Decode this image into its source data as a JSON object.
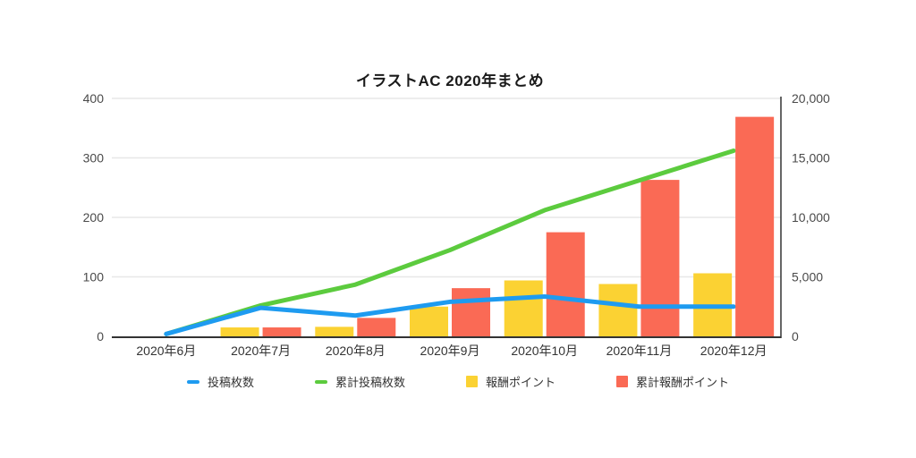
{
  "title": "イラストAC 2020年まとめ",
  "colors": {
    "background": "#FFFFFF",
    "gridline": "#E7E7E7",
    "axis_line": "#333333",
    "tick_label": "#4A4A4A",
    "x_label": "#333333",
    "title": "#1A1A1A"
  },
  "chart_data": {
    "type": "combo",
    "title": "イラストAC 2020年まとめ",
    "categories": [
      "2020年6月",
      "2020年7月",
      "2020年8月",
      "2020年9月",
      "2020年10月",
      "2020年11月",
      "2020年12月"
    ],
    "series": [
      {
        "name": "投稿枚数",
        "type": "line",
        "axis": "left",
        "color": "#1E9BF0",
        "values": [
          4,
          48,
          35,
          58,
          67,
          50,
          50
        ]
      },
      {
        "name": "累計投稿枚数",
        "type": "line",
        "axis": "left",
        "color": "#5CCB3E",
        "values": [
          4,
          52,
          87,
          145,
          212,
          262,
          312
        ]
      },
      {
        "name": "報酬ポイント",
        "type": "bar",
        "axis": "right",
        "color": "#FBD233",
        "values": [
          0,
          750,
          800,
          2500,
          4700,
          4400,
          5300
        ]
      },
      {
        "name": "累計報酬ポイント",
        "type": "bar",
        "axis": "right",
        "color": "#FA6A55",
        "values": [
          0,
          750,
          1550,
          4050,
          8750,
          13150,
          18450
        ]
      }
    ],
    "left_axis": {
      "min": 0,
      "max": 400,
      "ticks": [
        "0",
        "100",
        "200",
        "300",
        "400"
      ]
    },
    "right_axis": {
      "min": 0,
      "max": 20000,
      "ticks": [
        "0",
        "5,000",
        "10,000",
        "15,000",
        "20,000"
      ]
    },
    "grid": true,
    "legend_position": "bottom"
  }
}
